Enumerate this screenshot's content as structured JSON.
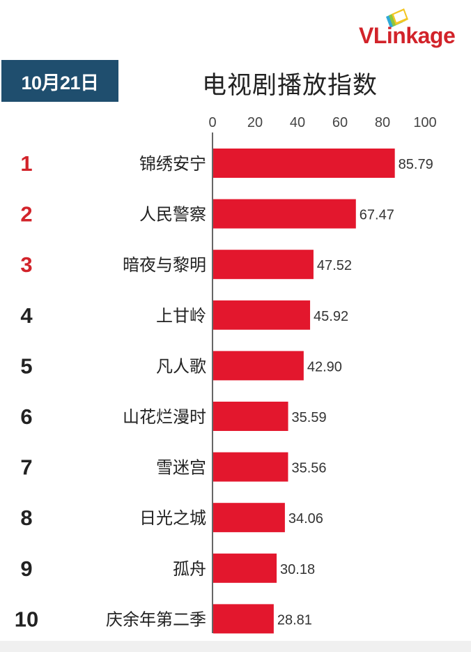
{
  "header": {
    "date_label": "10月21日",
    "title": "电视剧播放指数",
    "logo_text": "VLinkage"
  },
  "colors": {
    "bar": "#e3172d",
    "rank_top": "#d2232a",
    "rank_rest": "#222222",
    "date_box": "#1f4e6e",
    "axis_line": "#333333"
  },
  "chart_data": {
    "type": "bar",
    "orientation": "horizontal",
    "title": "电视剧播放指数",
    "xlabel": "",
    "ylabel": "",
    "xlim": [
      0,
      100
    ],
    "x_ticks": [
      "0",
      "20",
      "40",
      "60",
      "80",
      "100"
    ],
    "x_tick_values": [
      0,
      20,
      40,
      60,
      80,
      100
    ],
    "ranks": [
      "1",
      "2",
      "3",
      "4",
      "5",
      "6",
      "7",
      "8",
      "9",
      "10"
    ],
    "categories": [
      "锦绣安宁",
      "人民警察",
      "暗夜与黎明",
      "上甘岭",
      "凡人歌",
      "山花烂漫时",
      "雪迷宫",
      "日光之城",
      "孤舟",
      "庆余年第二季"
    ],
    "values": [
      85.79,
      67.47,
      47.52,
      45.92,
      42.9,
      35.59,
      35.56,
      34.06,
      30.18,
      28.81
    ],
    "value_labels": [
      "85.79",
      "67.47",
      "47.52",
      "45.92",
      "42.90",
      "35.59",
      "35.56",
      "34.06",
      "30.18",
      "28.81"
    ],
    "grid": false,
    "legend": "none"
  }
}
